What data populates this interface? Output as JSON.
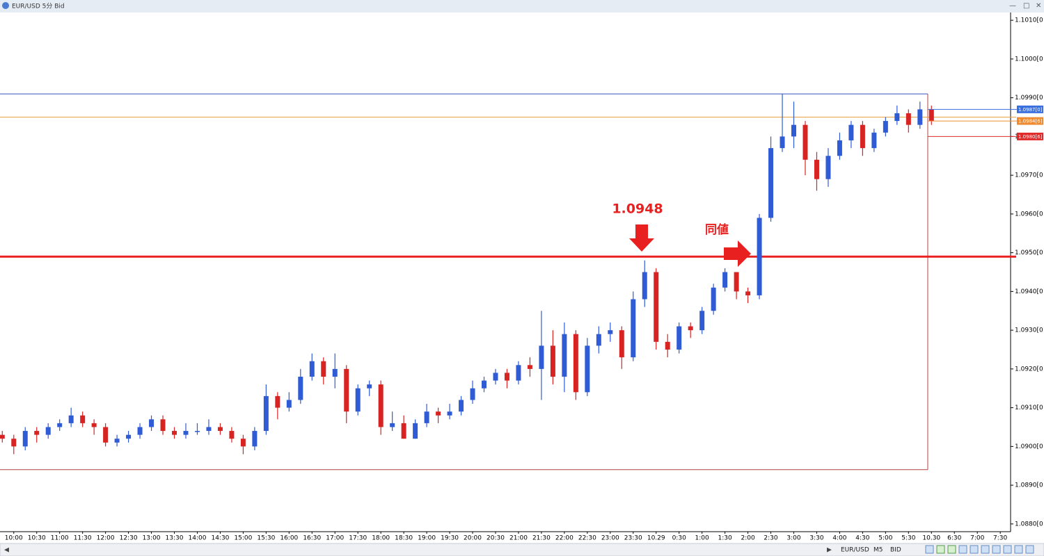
{
  "chart_data": {
    "type": "candlestick",
    "title": "EUR/USD 5分 Bid",
    "open": [
      1.0903,
      1.0902,
      1.09,
      1.0904,
      1.0903,
      1.0905,
      1.0906,
      1.0908,
      1.0906,
      1.0905,
      1.0901,
      1.0902,
      1.0903,
      1.0905,
      1.0907,
      1.0904,
      1.0903,
      1.0904,
      1.0904,
      1.0905,
      1.0904,
      1.0902,
      1.09,
      1.0904,
      1.0913,
      1.091,
      1.0912,
      1.0918,
      1.0922,
      1.0918,
      1.092,
      1.0909,
      1.0915,
      1.0916,
      1.0905,
      1.0906,
      1.0902,
      1.0906,
      1.0909,
      1.0908,
      1.0909,
      1.0912,
      1.0915,
      1.0917,
      1.0919,
      1.0917,
      1.0921,
      1.092,
      1.0926,
      1.0918,
      1.0929,
      1.0914,
      1.0926,
      1.0929,
      1.093,
      1.0923,
      1.0938,
      1.0945,
      1.0927,
      1.0925,
      1.0931,
      1.093,
      1.0935,
      1.0941,
      1.0945,
      1.094,
      1.0939,
      1.0959,
      1.0977,
      1.098,
      1.0983,
      1.0974,
      1.0969,
      1.0975,
      1.0979,
      1.0983,
      1.0977,
      1.0981,
      1.0984,
      1.0986,
      1.0983,
      1.0987
    ],
    "high": [
      1.0904,
      1.0903,
      1.0905,
      1.0905,
      1.0906,
      1.0907,
      1.091,
      1.0909,
      1.0907,
      1.0906,
      1.0903,
      1.0904,
      1.0906,
      1.0908,
      1.0908,
      1.0905,
      1.0906,
      1.0906,
      1.0907,
      1.0906,
      1.0905,
      1.0903,
      1.0905,
      1.0916,
      1.0914,
      1.0914,
      1.092,
      1.0924,
      1.0923,
      1.0924,
      1.0921,
      1.0916,
      1.0917,
      1.0917,
      1.0909,
      1.0908,
      1.0907,
      1.0911,
      1.091,
      1.0911,
      1.0913,
      1.0917,
      1.0918,
      1.092,
      1.092,
      1.0922,
      1.0923,
      1.0935,
      1.093,
      1.0932,
      1.093,
      1.0928,
      1.0931,
      1.0932,
      1.0931,
      1.094,
      1.0948,
      1.0946,
      1.0929,
      1.0932,
      1.0932,
      1.0936,
      1.0942,
      1.0946,
      1.0945,
      1.0941,
      1.096,
      1.098,
      1.0991,
      1.0989,
      1.0984,
      1.0976,
      1.0977,
      1.0981,
      1.0984,
      1.0984,
      1.0982,
      1.0985,
      1.0988,
      1.0987,
      1.0989,
      1.0988
    ],
    "low": [
      1.0901,
      1.0898,
      1.0899,
      1.0901,
      1.0902,
      1.0904,
      1.0905,
      1.0905,
      1.0903,
      1.09,
      1.09,
      1.0901,
      1.0902,
      1.0904,
      1.0903,
      1.0902,
      1.0902,
      1.0903,
      1.0903,
      1.0903,
      1.0901,
      1.0898,
      1.0899,
      1.0903,
      1.0907,
      1.0909,
      1.0911,
      1.0917,
      1.0916,
      1.0915,
      1.0906,
      1.0908,
      1.0913,
      1.0903,
      1.0904,
      1.0902,
      1.0902,
      1.0905,
      1.0906,
      1.0907,
      1.0908,
      1.0911,
      1.0914,
      1.0916,
      1.0915,
      1.0916,
      1.0918,
      1.0912,
      1.0916,
      1.0914,
      1.0912,
      1.0913,
      1.0924,
      1.0927,
      1.092,
      1.0922,
      1.0936,
      1.0925,
      1.0923,
      1.0924,
      1.0928,
      1.0929,
      1.0934,
      1.094,
      1.0938,
      1.0937,
      1.0938,
      1.0958,
      1.0976,
      1.0977,
      1.097,
      1.0966,
      1.0967,
      1.0974,
      1.0977,
      1.0975,
      1.0976,
      1.098,
      1.0983,
      1.0981,
      1.0982,
      1.0983
    ],
    "close": [
      1.0902,
      1.09,
      1.0904,
      1.0903,
      1.0905,
      1.0906,
      1.0908,
      1.0906,
      1.0905,
      1.0901,
      1.0902,
      1.0903,
      1.0905,
      1.0907,
      1.0904,
      1.0903,
      1.0904,
      1.0904,
      1.0905,
      1.0904,
      1.0902,
      1.09,
      1.0904,
      1.0913,
      1.091,
      1.0912,
      1.0918,
      1.0922,
      1.0918,
      1.092,
      1.0909,
      1.0915,
      1.0916,
      1.0905,
      1.0906,
      1.0902,
      1.0906,
      1.0909,
      1.0908,
      1.0909,
      1.0912,
      1.0915,
      1.0917,
      1.0919,
      1.0917,
      1.0921,
      1.092,
      1.0926,
      1.0918,
      1.0929,
      1.0914,
      1.0926,
      1.0929,
      1.093,
      1.0923,
      1.0938,
      1.0945,
      1.0927,
      1.0925,
      1.0931,
      1.093,
      1.0935,
      1.0941,
      1.0945,
      1.094,
      1.0939,
      1.0959,
      1.0977,
      1.098,
      1.0983,
      1.0974,
      1.0969,
      1.0975,
      1.0979,
      1.0983,
      1.0977,
      1.0981,
      1.0984,
      1.0986,
      1.0983,
      1.0987,
      1.0984
    ],
    "up_color": "#2f5bd4",
    "down_color": "#d82323",
    "xlim": [
      -0.2,
      87.9
    ],
    "xticks": [
      {
        "value": 1,
        "label": "10:00"
      },
      {
        "value": 3,
        "label": "10:30"
      },
      {
        "value": 5,
        "label": "11:00"
      },
      {
        "value": 7,
        "label": "11:30"
      },
      {
        "value": 9,
        "label": "12:00"
      },
      {
        "value": 11,
        "label": "12:30"
      },
      {
        "value": 13,
        "label": "13:00"
      },
      {
        "value": 15,
        "label": "13:30"
      },
      {
        "value": 17,
        "label": "14:00"
      },
      {
        "value": 19,
        "label": "14:30"
      },
      {
        "value": 21,
        "label": "15:00"
      },
      {
        "value": 23,
        "label": "15:30"
      },
      {
        "value": 25,
        "label": "16:00"
      },
      {
        "value": 27,
        "label": "16:30"
      },
      {
        "value": 29,
        "label": "17:00"
      },
      {
        "value": 31,
        "label": "17:30"
      },
      {
        "value": 33,
        "label": "18:00"
      },
      {
        "value": 35,
        "label": "18:30"
      },
      {
        "value": 37,
        "label": "19:00"
      },
      {
        "value": 39,
        "label": "19:30"
      },
      {
        "value": 41,
        "label": "20:00"
      },
      {
        "value": 43,
        "label": "20:30"
      },
      {
        "value": 45,
        "label": "21:00"
      },
      {
        "value": 47,
        "label": "21:30"
      },
      {
        "value": 49,
        "label": "22:00"
      },
      {
        "value": 51,
        "label": "22:30"
      },
      {
        "value": 53,
        "label": "23:00"
      },
      {
        "value": 55,
        "label": "23:30"
      },
      {
        "value": 57,
        "label": "10.29"
      },
      {
        "value": 59,
        "label": "0:30"
      },
      {
        "value": 61,
        "label": "1:00"
      },
      {
        "value": 63,
        "label": "1:30"
      },
      {
        "value": 65,
        "label": "2:00"
      },
      {
        "value": 67,
        "label": "2:30"
      },
      {
        "value": 69,
        "label": "3:00"
      },
      {
        "value": 71,
        "label": "3:30"
      },
      {
        "value": 73,
        "label": "4:00"
      },
      {
        "value": 75,
        "label": "4:30"
      },
      {
        "value": 77,
        "label": "5:00"
      },
      {
        "value": 79,
        "label": "5:30"
      },
      {
        "value": 81,
        "label": "10.30"
      },
      {
        "value": 83,
        "label": "6:30"
      },
      {
        "value": 85,
        "label": "7:00"
      },
      {
        "value": 87,
        "label": "7:30"
      }
    ],
    "ylim": [
      1.0878,
      1.1012
    ],
    "yticks": [
      {
        "value": 1.101,
        "label": "1.1010[0"
      },
      {
        "value": 1.1,
        "label": "1.1000[0"
      },
      {
        "value": 1.099,
        "label": "1.0990[0"
      },
      {
        "value": 1.098,
        "label": "1.0980[0"
      },
      {
        "value": 1.097,
        "label": "1.0970[0"
      },
      {
        "value": 1.096,
        "label": "1.0960[0"
      },
      {
        "value": 1.095,
        "label": "1.0950[0"
      },
      {
        "value": 1.094,
        "label": "1.0940[0"
      },
      {
        "value": 1.093,
        "label": "1.0930[0"
      },
      {
        "value": 1.092,
        "label": "1.0920[0"
      },
      {
        "value": 1.091,
        "label": "1.0910[0"
      },
      {
        "value": 1.09,
        "label": "1.0900[0"
      },
      {
        "value": 1.089,
        "label": "1.0890[0"
      },
      {
        "value": 1.088,
        "label": "1.0880[0"
      }
    ],
    "levels": [
      {
        "value": 1.0985,
        "color": "#e8a040",
        "width": 1
      },
      {
        "value": 1.0949,
        "color": "#e82020",
        "width": 3
      }
    ],
    "range_box": {
      "top": 1.0991,
      "bottom": 1.0894,
      "top_color": "#3050c0",
      "bottom_color": "#b04040"
    },
    "price_tags": [
      {
        "value": 1.0987,
        "label": "1.0987[0]",
        "color": "#3a6fe0"
      },
      {
        "value": 1.0984,
        "label": "1.0984[6]",
        "color": "#f08a30"
      },
      {
        "value": 1.098,
        "label": "1.0980[6]",
        "color": "#e02a2a"
      }
    ],
    "annotations": [
      "1.0948",
      "同値"
    ],
    "toolbar": [
      "EUR/USD",
      "M5",
      "BID"
    ]
  }
}
